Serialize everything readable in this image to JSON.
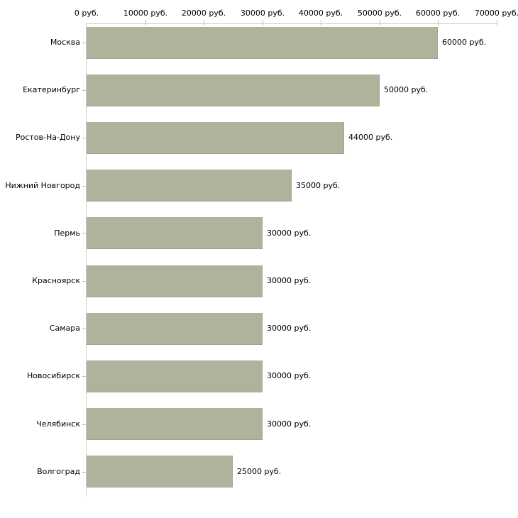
{
  "chart_data": {
    "type": "bar",
    "orientation": "horizontal",
    "title": "",
    "xlabel": "",
    "ylabel": "",
    "grid": false,
    "legend": false,
    "categories": [
      "Москва",
      "Екатеринбург",
      "Ростов-На-Дону",
      "Нижний Новгород",
      "Пермь",
      "Красноярск",
      "Самара",
      "Новосибирск",
      "Челябинск",
      "Волгоград"
    ],
    "values": [
      60000,
      50000,
      44000,
      35000,
      30000,
      30000,
      30000,
      30000,
      30000,
      25000
    ],
    "value_labels": [
      "60000 руб.",
      "50000 руб.",
      "44000 руб.",
      "35000 руб.",
      "30000 руб.",
      "30000 руб.",
      "30000 руб.",
      "30000 руб.",
      "30000 руб.",
      "25000 руб."
    ],
    "x_axis": {
      "position": "top",
      "min": 0,
      "max": 70000,
      "ticks": [
        0,
        10000,
        20000,
        30000,
        40000,
        50000,
        60000,
        70000
      ],
      "tick_labels": [
        "0 руб.",
        "10000 руб.",
        "20000 руб.",
        "30000 руб.",
        "40000 руб.",
        "50000 руб.",
        "60000 руб.",
        "70000 руб."
      ]
    },
    "colors": {
      "bar_fill": "#aeb49b",
      "bar_edge": "#9da487",
      "axis_line": "#cccccc",
      "tick_mark": "#c2c29c",
      "text": "#000000",
      "background": "#ffffff"
    }
  }
}
